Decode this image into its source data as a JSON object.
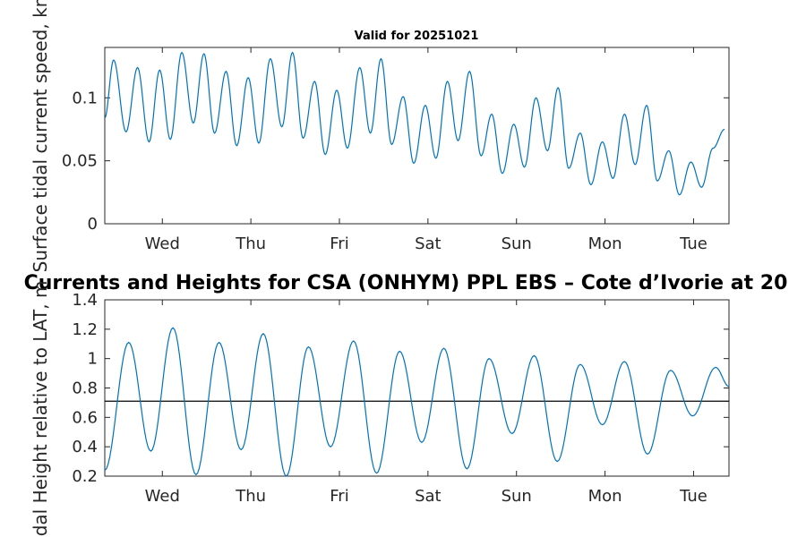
{
  "chart_data": [
    {
      "type": "line",
      "title": "Valid for 20251021",
      "xlabel": "",
      "ylabel": "Surface tidal current speed, kn",
      "x_tick_labels": [
        "Wed",
        "Thu",
        "Fri",
        "Sat",
        "Sun",
        "Mon",
        "Tue"
      ],
      "y_tick_labels": [
        "0",
        "0.05",
        "0.1"
      ],
      "y_ticks": [
        0,
        0.05,
        0.1
      ],
      "ylim": [
        0,
        0.14
      ],
      "xlim_days": [
        0,
        7.05
      ],
      "x_tick_days": [
        0.65,
        1.65,
        2.65,
        3.65,
        4.65,
        5.65,
        6.65
      ],
      "line_color": "#0072BD",
      "series": [
        {
          "name": "Surface tidal current speed",
          "extrema": [
            [
              0.0,
              0.084
            ],
            [
              0.1,
              0.13
            ],
            [
              0.24,
              0.073
            ],
            [
              0.37,
              0.124
            ],
            [
              0.5,
              0.065
            ],
            [
              0.62,
              0.122
            ],
            [
              0.74,
              0.067
            ],
            [
              0.87,
              0.136
            ],
            [
              1.0,
              0.08
            ],
            [
              1.12,
              0.135
            ],
            [
              1.24,
              0.072
            ],
            [
              1.37,
              0.121
            ],
            [
              1.49,
              0.062
            ],
            [
              1.62,
              0.116
            ],
            [
              1.74,
              0.064
            ],
            [
              1.87,
              0.131
            ],
            [
              2.0,
              0.077
            ],
            [
              2.12,
              0.136
            ],
            [
              2.24,
              0.068
            ],
            [
              2.37,
              0.113
            ],
            [
              2.49,
              0.055
            ],
            [
              2.62,
              0.106
            ],
            [
              2.74,
              0.06
            ],
            [
              2.88,
              0.124
            ],
            [
              3.0,
              0.072
            ],
            [
              3.12,
              0.131
            ],
            [
              3.24,
              0.063
            ],
            [
              3.37,
              0.101
            ],
            [
              3.49,
              0.048
            ],
            [
              3.62,
              0.094
            ],
            [
              3.74,
              0.052
            ],
            [
              3.87,
              0.113
            ],
            [
              3.99,
              0.066
            ],
            [
              4.12,
              0.121
            ],
            [
              4.25,
              0.054
            ],
            [
              4.37,
              0.087
            ],
            [
              4.49,
              0.04
            ],
            [
              4.62,
              0.079
            ],
            [
              4.74,
              0.045
            ],
            [
              4.87,
              0.1
            ],
            [
              5.0,
              0.058
            ],
            [
              5.12,
              0.108
            ],
            [
              5.24,
              0.044
            ],
            [
              5.37,
              0.072
            ],
            [
              5.49,
              0.031
            ],
            [
              5.62,
              0.065
            ],
            [
              5.74,
              0.036
            ],
            [
              5.87,
              0.087
            ],
            [
              5.99,
              0.047
            ],
            [
              6.12,
              0.094
            ],
            [
              6.24,
              0.034
            ],
            [
              6.37,
              0.058
            ],
            [
              6.49,
              0.023
            ],
            [
              6.62,
              0.049
            ],
            [
              6.74,
              0.029
            ],
            [
              6.87,
              0.06
            ],
            [
              7.0,
              0.075
            ]
          ]
        }
      ]
    },
    {
      "type": "line",
      "title": "Currents and Heights for CSA (ONHYM) PPL EBS  – Cote d’Ivorie at 20",
      "xlabel": "",
      "ylabel": "Tidal Height relative to LAT, m",
      "x_tick_labels": [
        "Wed",
        "Thu",
        "Fri",
        "Sat",
        "Sun",
        "Mon",
        "Tue"
      ],
      "y_tick_labels": [
        "0.2",
        "0.4",
        "0.6",
        "0.8",
        "1",
        "1.2",
        "1.4"
      ],
      "y_ticks": [
        0.2,
        0.4,
        0.6,
        0.8,
        1.0,
        1.2,
        1.4
      ],
      "ylim": [
        0.2,
        1.4
      ],
      "xlim_days": [
        0,
        7.05
      ],
      "x_tick_days": [
        0.65,
        1.65,
        2.65,
        3.65,
        4.65,
        5.65,
        6.65
      ],
      "line_color": "#0072BD",
      "reference_line": {
        "value": 0.71,
        "color": "#000000"
      },
      "series": [
        {
          "name": "Tidal Height",
          "extrema": [
            [
              0.0,
              0.24
            ],
            [
              0.27,
              1.11
            ],
            [
              0.52,
              0.37
            ],
            [
              0.77,
              1.21
            ],
            [
              1.03,
              0.21
            ],
            [
              1.29,
              1.11
            ],
            [
              1.54,
              0.38
            ],
            [
              1.79,
              1.17
            ],
            [
              2.05,
              0.2
            ],
            [
              2.3,
              1.08
            ],
            [
              2.55,
              0.4
            ],
            [
              2.81,
              1.12
            ],
            [
              3.07,
              0.22
            ],
            [
              3.33,
              1.05
            ],
            [
              3.58,
              0.43
            ],
            [
              3.83,
              1.07
            ],
            [
              4.09,
              0.25
            ],
            [
              4.34,
              1.0
            ],
            [
              4.6,
              0.49
            ],
            [
              4.85,
              1.02
            ],
            [
              5.11,
              0.3
            ],
            [
              5.37,
              0.96
            ],
            [
              5.62,
              0.55
            ],
            [
              5.87,
              0.98
            ],
            [
              6.13,
              0.35
            ],
            [
              6.39,
              0.92
            ],
            [
              6.64,
              0.61
            ],
            [
              6.9,
              0.94
            ],
            [
              7.05,
              0.81
            ]
          ]
        }
      ]
    }
  ]
}
